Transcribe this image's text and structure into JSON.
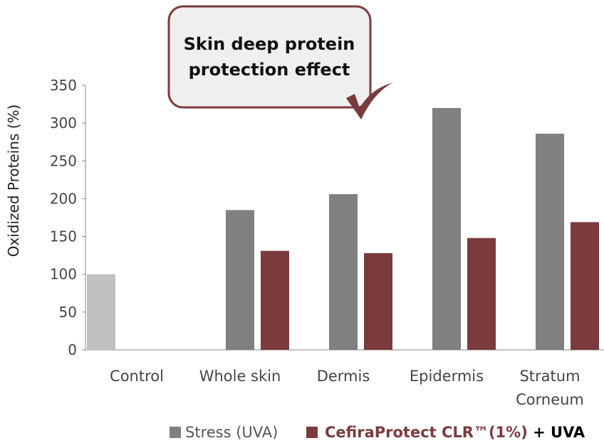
{
  "chart_data": {
    "type": "bar",
    "title": "Skin deep protein protection effect",
    "ylabel": "Oxidized Proteins (%)",
    "xlabel": "",
    "ylim": [
      0,
      350
    ],
    "yticks": [
      0,
      50,
      100,
      150,
      200,
      250,
      300,
      350
    ],
    "categories": [
      [
        "Control"
      ],
      [
        "Whole skin"
      ],
      [
        "Dermis"
      ],
      [
        "Epidermis"
      ],
      [
        "Stratum",
        "Corneum"
      ]
    ],
    "control": {
      "name": "Control",
      "value": 100,
      "color": "#c0c0c0"
    },
    "series": [
      {
        "name": "Stress (UVA)",
        "values": [
          null,
          185,
          206,
          320,
          286
        ],
        "color": "#808080"
      },
      {
        "name": "CefiraProtect CLR™(1%)",
        "name_suffix": " + UVA",
        "values": [
          null,
          131,
          128,
          148,
          169
        ],
        "color": "#7b3b3d"
      }
    ],
    "legend": "bottom",
    "grid": false
  }
}
